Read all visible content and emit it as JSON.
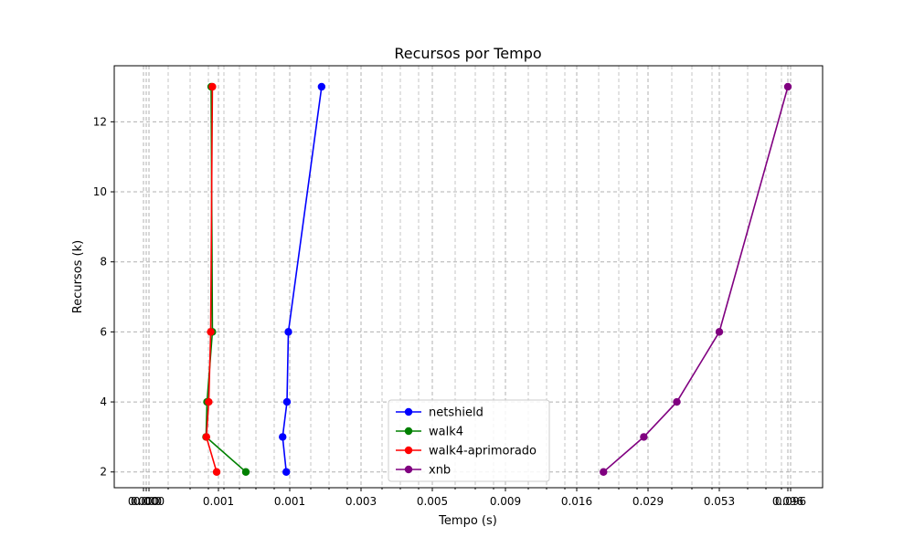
{
  "chart_data": {
    "type": "line",
    "title": "Recursos por Tempo",
    "xlabel": "Tempo (s)",
    "ylabel": "Recursos (k)",
    "xscale": "log",
    "grid": true,
    "legend_position": "lower-center",
    "xticks": [
      "0.000",
      "0.000",
      "0.000",
      "0.001",
      "0.001",
      "0.003",
      "0.005",
      "0.009",
      "0.016",
      "0.029",
      "0.053",
      "0.096",
      "0.096"
    ],
    "yticks": [
      "2",
      "4",
      "6",
      "8",
      "10",
      "12"
    ],
    "ylim": [
      1.55,
      13.6
    ],
    "series": [
      {
        "name": "netshield",
        "color": "#0000ff",
        "points": [
          [
            0.00115,
            2
          ],
          [
            0.0011,
            3
          ],
          [
            0.00116,
            4
          ],
          [
            0.00118,
            6
          ],
          [
            0.00178,
            13
          ]
        ]
      },
      {
        "name": "walk4",
        "color": "#008000",
        "points": [
          [
            0.0007,
            2
          ],
          [
            0.000175,
            3
          ],
          [
            0.00019,
            4
          ],
          [
            0.0003,
            6
          ],
          [
            0.00027,
            13
          ]
        ]
      },
      {
        "name": "walk4-aprimorado",
        "color": "#ff0000",
        "points": [
          [
            0.00043,
            2
          ],
          [
            0.00018,
            3
          ],
          [
            0.00022,
            4
          ],
          [
            0.00026,
            6
          ],
          [
            0.0003,
            13
          ]
        ]
      },
      {
        "name": "xnb",
        "color": "#800080",
        "points": [
          [
            0.02,
            2
          ],
          [
            0.028,
            3
          ],
          [
            0.037,
            4
          ],
          [
            0.053,
            6
          ],
          [
            0.096,
            13
          ]
        ]
      }
    ]
  }
}
